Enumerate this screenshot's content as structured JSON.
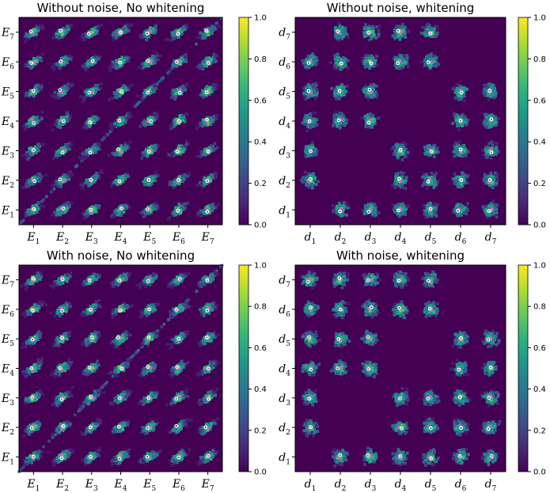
{
  "colormap": "viridis",
  "colors": {
    "background": "#440154",
    "center_dot_primary": "#ffffff",
    "center_dot_secondary": "#ff4fd8",
    "axes": "#000000"
  },
  "chart_data": [
    {
      "type": "heatmap",
      "title": "Without noise, No whitening",
      "xticks": [
        [
          "E",
          "1"
        ],
        [
          "E",
          "2"
        ],
        [
          "E",
          "3"
        ],
        [
          "E",
          "4"
        ],
        [
          "E",
          "5"
        ],
        [
          "E",
          "6"
        ],
        [
          "E",
          "7"
        ]
      ],
      "yticks": [
        [
          "E",
          "1"
        ],
        [
          "E",
          "2"
        ],
        [
          "E",
          "3"
        ],
        [
          "E",
          "4"
        ],
        [
          "E",
          "5"
        ],
        [
          "E",
          "6"
        ],
        [
          "E",
          "7"
        ]
      ],
      "blob_shape": "diagonal",
      "diagonal_ridge": true,
      "empty_cells": [],
      "colorbar": {
        "range": [
          0,
          1
        ],
        "ticks": [
          "0.0",
          "0.2",
          "0.4",
          "0.6",
          "0.8",
          "1.0"
        ]
      }
    },
    {
      "type": "heatmap",
      "title": "Without noise, whitening",
      "xticks": [
        [
          "d",
          "1"
        ],
        [
          "d",
          "2"
        ],
        [
          "d",
          "3"
        ],
        [
          "d",
          "4"
        ],
        [
          "d",
          "5"
        ],
        [
          "d",
          "6"
        ],
        [
          "d",
          "7"
        ]
      ],
      "yticks": [
        [
          "d",
          "1"
        ],
        [
          "d",
          "2"
        ],
        [
          "d",
          "3"
        ],
        [
          "d",
          "4"
        ],
        [
          "d",
          "5"
        ],
        [
          "d",
          "6"
        ],
        [
          "d",
          "7"
        ]
      ],
      "blob_shape": "round",
      "diagonal_ridge": false,
      "empty_cells": [
        [
          1,
          1
        ],
        [
          2,
          2
        ],
        [
          3,
          3
        ],
        [
          4,
          4
        ],
        [
          5,
          5
        ],
        [
          6,
          6
        ],
        [
          7,
          7
        ],
        [
          7,
          6
        ],
        [
          6,
          7
        ],
        [
          5,
          4
        ],
        [
          4,
          5
        ],
        [
          3,
          2
        ],
        [
          2,
          3
        ],
        [
          1,
          7
        ]
      ],
      "colorbar": {
        "range": [
          0,
          1
        ],
        "ticks": [
          "0.0",
          "0.2",
          "0.4",
          "0.6",
          "0.8",
          "1.0"
        ]
      }
    },
    {
      "type": "heatmap",
      "title": "With noise, No whitening",
      "xticks": [
        [
          "E",
          "1"
        ],
        [
          "E",
          "2"
        ],
        [
          "E",
          "3"
        ],
        [
          "E",
          "4"
        ],
        [
          "E",
          "5"
        ],
        [
          "E",
          "6"
        ],
        [
          "E",
          "7"
        ]
      ],
      "yticks": [
        [
          "E",
          "1"
        ],
        [
          "E",
          "2"
        ],
        [
          "E",
          "3"
        ],
        [
          "E",
          "4"
        ],
        [
          "E",
          "5"
        ],
        [
          "E",
          "6"
        ],
        [
          "E",
          "7"
        ]
      ],
      "blob_shape": "diagonal",
      "diagonal_ridge": true,
      "empty_cells": [],
      "colorbar": {
        "range": [
          0,
          1
        ],
        "ticks": [
          "0.0",
          "0.2",
          "0.4",
          "0.6",
          "0.8",
          "1.0"
        ]
      }
    },
    {
      "type": "heatmap",
      "title": "With noise, whitening",
      "xticks": [
        [
          "d",
          "1"
        ],
        [
          "d",
          "2"
        ],
        [
          "d",
          "3"
        ],
        [
          "d",
          "4"
        ],
        [
          "d",
          "5"
        ],
        [
          "d",
          "6"
        ],
        [
          "d",
          "7"
        ]
      ],
      "yticks": [
        [
          "d",
          "1"
        ],
        [
          "d",
          "2"
        ],
        [
          "d",
          "3"
        ],
        [
          "d",
          "4"
        ],
        [
          "d",
          "5"
        ],
        [
          "d",
          "6"
        ],
        [
          "d",
          "7"
        ]
      ],
      "blob_shape": "round",
      "diagonal_ridge": false,
      "empty_cells": [
        [
          1,
          1
        ],
        [
          2,
          2
        ],
        [
          3,
          3
        ],
        [
          4,
          4
        ],
        [
          5,
          5
        ],
        [
          6,
          6
        ],
        [
          7,
          7
        ],
        [
          7,
          6
        ],
        [
          6,
          7
        ],
        [
          5,
          4
        ],
        [
          4,
          5
        ],
        [
          3,
          2
        ],
        [
          2,
          3
        ]
      ],
      "colorbar": {
        "range": [
          0,
          1
        ],
        "ticks": [
          "0.0",
          "0.2",
          "0.4",
          "0.6",
          "0.8",
          "1.0"
        ]
      }
    }
  ]
}
